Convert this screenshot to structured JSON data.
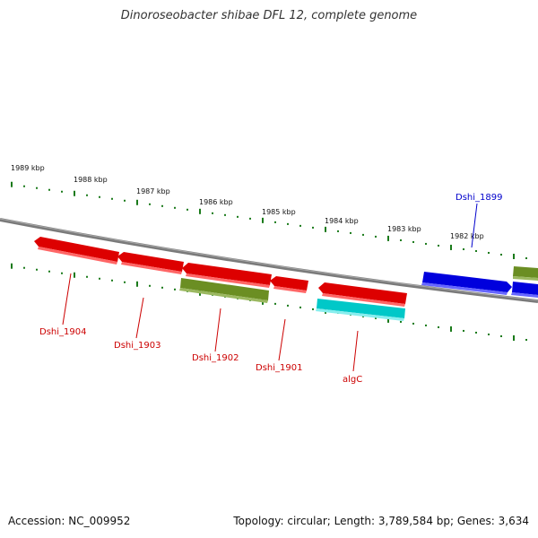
{
  "title": "Dinoroseobacter shibae DFL 12, complete genome",
  "footer": {
    "accession": "Accession: NC_009952",
    "stats": "Topology: circular; Length: 3,789,584 bp; Genes: 3,634"
  },
  "kbp_labels": [
    "1989 kbp",
    "1988 kbp",
    "1987 kbp",
    "1986 kbp",
    "1985 kbp",
    "1984 kbp",
    "1983 kbp",
    "1982 kbp"
  ],
  "genes": [
    {
      "name": "Dshi_1904",
      "color": "#dd0000",
      "label_color": "#cc0000"
    },
    {
      "name": "Dshi_1903",
      "color": "#dd0000",
      "label_color": "#cc0000"
    },
    {
      "name": "Dshi_1902",
      "color": "#dd0000",
      "label_color": "#cc0000"
    },
    {
      "name": "Dshi_1901",
      "color": "#dd0000",
      "label_color": "#cc0000"
    },
    {
      "name": "algC",
      "color": "#dd0000",
      "label_color": "#cc0000"
    },
    {
      "name": "Dshi_1899",
      "color": "#0000dd",
      "label_color": "#0000cc"
    }
  ],
  "colors": {
    "forward_gene": "#0000dd",
    "reverse_gene": "#dd0000",
    "olive_feature": "#6b8e23",
    "cyan_feature": "#00cccc",
    "tick": "#1a7a1a",
    "genome_line": "#808080"
  }
}
